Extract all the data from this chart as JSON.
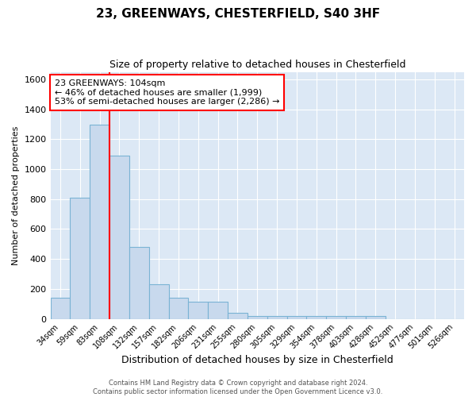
{
  "title": "23, GREENWAYS, CHESTERFIELD, S40 3HF",
  "subtitle": "Size of property relative to detached houses in Chesterfield",
  "xlabel": "Distribution of detached houses by size in Chesterfield",
  "ylabel": "Number of detached properties",
  "bar_color": "#c8d9ed",
  "bar_edge_color": "#7ab3d4",
  "background_color": "#dce8f5",
  "grid_color": "#ffffff",
  "bin_labels": [
    "34sqm",
    "59sqm",
    "83sqm",
    "108sqm",
    "132sqm",
    "157sqm",
    "182sqm",
    "206sqm",
    "231sqm",
    "255sqm",
    "280sqm",
    "305sqm",
    "329sqm",
    "354sqm",
    "378sqm",
    "403sqm",
    "428sqm",
    "452sqm",
    "477sqm",
    "501sqm",
    "526sqm"
  ],
  "bin_values": [
    140,
    810,
    1300,
    1090,
    480,
    230,
    140,
    115,
    115,
    40,
    20,
    20,
    20,
    20,
    20,
    20,
    20,
    0,
    0,
    0,
    0
  ],
  "red_line_x": 2.5,
  "annotation_text": "23 GREENWAYS: 104sqm\n← 46% of detached houses are smaller (1,999)\n53% of semi-detached houses are larger (2,286) →",
  "annotation_fontsize": 8,
  "ylim": [
    0,
    1650
  ],
  "yticks": [
    0,
    200,
    400,
    600,
    800,
    1000,
    1200,
    1400,
    1600
  ],
  "footer_line1": "Contains HM Land Registry data © Crown copyright and database right 2024.",
  "footer_line2": "Contains public sector information licensed under the Open Government Licence v3.0.",
  "title_fontsize": 11,
  "subtitle_fontsize": 9,
  "ylabel_fontsize": 8,
  "xlabel_fontsize": 9
}
